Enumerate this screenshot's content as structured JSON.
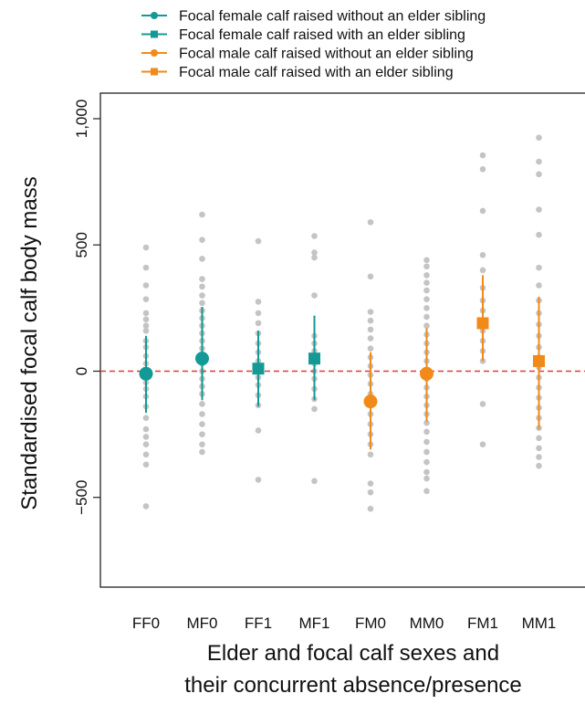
{
  "chart_data": {
    "type": "scatter",
    "ylabel": "Standardised focal calf body mass",
    "xlabel": [
      "Elder and focal calf sexes and",
      "their concurrent absence/presence"
    ],
    "categories": [
      "FF0",
      "MF0",
      "FF1",
      "MF1",
      "FM0",
      "MM0",
      "FM1",
      "MM1"
    ],
    "ylim": [
      -850,
      1000
    ],
    "yticks": [
      -500,
      0,
      500,
      1000
    ],
    "ytick_labels": [
      "−500",
      "0",
      "500",
      "1,000"
    ],
    "reference_line": {
      "y": 0,
      "color": "#e03a3a",
      "style": "dashed"
    },
    "grid": false,
    "legend_position": "top",
    "colors": {
      "female": "#139a96",
      "male": "#f28a1a",
      "raw": "#c4c4c4"
    },
    "legend": [
      {
        "label": "Focal female calf raised without an elder sibling",
        "color": "#139a96",
        "marker": "circle"
      },
      {
        "label": "Focal female calf raised with an elder sibling",
        "color": "#139a96",
        "marker": "square"
      },
      {
        "label": "Focal male calf raised without an elder sibling",
        "color": "#f28a1a",
        "marker": "circle"
      },
      {
        "label": "Focal male calf raised with an elder sibling",
        "color": "#f28a1a",
        "marker": "square"
      }
    ],
    "estimates": [
      {
        "category": "FF0",
        "mean": -10,
        "lower": -165,
        "upper": 140,
        "marker": "circle",
        "color": "#139a96"
      },
      {
        "category": "MF0",
        "mean": 50,
        "lower": -115,
        "upper": 255,
        "marker": "circle",
        "color": "#139a96"
      },
      {
        "category": "FF1",
        "mean": 10,
        "lower": -140,
        "upper": 160,
        "marker": "square",
        "color": "#139a96"
      },
      {
        "category": "MF1",
        "mean": 50,
        "lower": -115,
        "upper": 220,
        "marker": "square",
        "color": "#139a96"
      },
      {
        "category": "FM0",
        "mean": -120,
        "lower": -310,
        "upper": 75,
        "marker": "circle",
        "color": "#f28a1a"
      },
      {
        "category": "MM0",
        "mean": -10,
        "lower": -200,
        "upper": 170,
        "marker": "circle",
        "color": "#f28a1a"
      },
      {
        "category": "FM1",
        "mean": 190,
        "lower": 40,
        "upper": 380,
        "marker": "square",
        "color": "#f28a1a"
      },
      {
        "category": "MM1",
        "mean": 40,
        "lower": -230,
        "upper": 295,
        "marker": "square",
        "color": "#f28a1a"
      }
    ],
    "raw_points": {
      "FF0": [
        490,
        410,
        340,
        285,
        230,
        205,
        180,
        160,
        120,
        95,
        60,
        30,
        5,
        -20,
        -45,
        -70,
        -100,
        -140,
        -185,
        -230,
        -260,
        -290,
        -330,
        -370,
        -535
      ],
      "MF0": [
        620,
        520,
        445,
        365,
        335,
        300,
        270,
        240,
        210,
        180,
        150,
        120,
        90,
        60,
        30,
        0,
        -30,
        -60,
        -90,
        -130,
        -170,
        -210,
        -250,
        -290,
        -320
      ],
      "FF1": [
        515,
        275,
        230,
        190,
        150,
        110,
        75,
        40,
        10,
        -25,
        -55,
        -95,
        -135,
        -235,
        -430
      ],
      "MF1": [
        535,
        470,
        450,
        300,
        140,
        110,
        80,
        55,
        30,
        0,
        -30,
        -70,
        -110,
        -150,
        -435
      ],
      "FM0": [
        590,
        375,
        235,
        200,
        165,
        130,
        90,
        55,
        20,
        -15,
        -50,
        -90,
        -130,
        -170,
        -210,
        -250,
        -290,
        -330,
        -445,
        -480,
        -545
      ],
      "MM0": [
        440,
        415,
        380,
        350,
        320,
        285,
        250,
        215,
        180,
        145,
        110,
        75,
        40,
        5,
        -30,
        -65,
        -100,
        -135,
        -170,
        -205,
        -240,
        -280,
        -320,
        -360,
        -400,
        -425,
        -475
      ],
      "FM1": [
        855,
        800,
        635,
        460,
        400,
        330,
        280,
        240,
        200,
        160,
        120,
        80,
        40,
        -130,
        -290
      ],
      "MM1": [
        925,
        830,
        780,
        640,
        540,
        410,
        340,
        280,
        230,
        185,
        140,
        95,
        55,
        15,
        -25,
        -65,
        -105,
        -145,
        -185,
        -225,
        -265,
        -305,
        -340,
        -375
      ]
    }
  }
}
